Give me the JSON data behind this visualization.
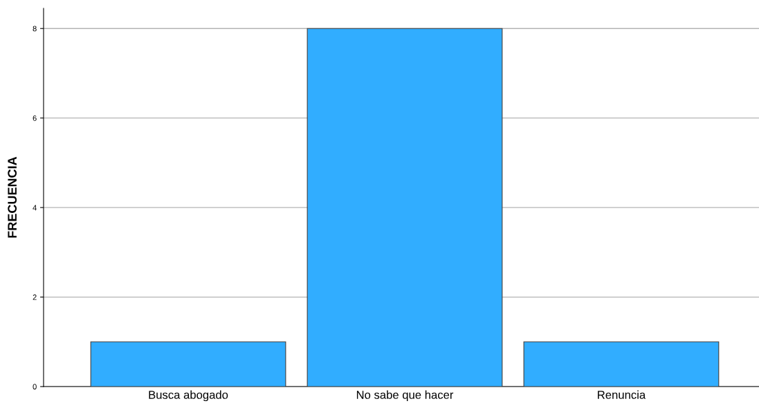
{
  "chart_data": {
    "type": "bar",
    "ylabel": "FRECUENCIA",
    "categories": [
      "Busca abogado",
      "No sabe que hacer",
      "Renuncia"
    ],
    "values": [
      1,
      8,
      1
    ],
    "color": "#31adff",
    "ylim": [
      0,
      8.45
    ],
    "yticks": [
      0,
      2,
      4,
      6,
      8
    ],
    "grid": "y",
    "legend": false
  }
}
